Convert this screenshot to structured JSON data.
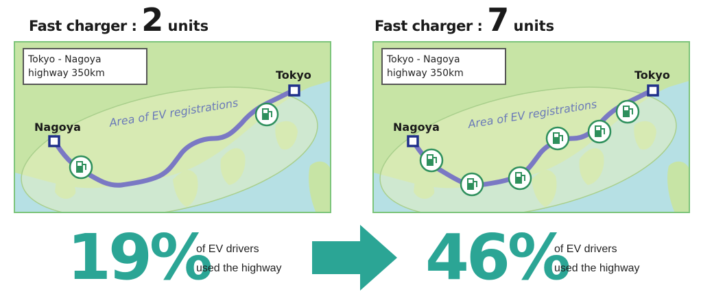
{
  "before": {
    "heading_label": "Fast charger : ",
    "heading_count": "2",
    "heading_unit": " units",
    "route_line1": "Tokyo - Nagoya",
    "route_line2": "highway 350km",
    "city_west": "Nagoya",
    "city_east": "Tokyo",
    "area_label": "Area of EV registrations",
    "stat_value": "19%",
    "stat_line1": "of EV drivers",
    "stat_line2": "used the highway"
  },
  "after": {
    "heading_label": "Fast charger : ",
    "heading_count": "7",
    "heading_unit": " units",
    "route_line1": "Tokyo - Nagoya",
    "route_line2": "highway 350km",
    "city_west": "Nagoya",
    "city_east": "Tokyo",
    "area_label": "Area of EV registrations",
    "stat_value": "46%",
    "stat_line1": "of EV drivers",
    "stat_line2": "used the highway"
  },
  "colors": {
    "land": "#c7e4a5",
    "sea": "#b6e0e4",
    "area_ellipse": "#e3efc0",
    "route": "#7a78c4",
    "charger": "#2e8f5c",
    "city_marker": "#1f2f8a",
    "stat": "#2ba595",
    "arrow": "#2ba595"
  },
  "icons": {
    "charger": "ev-charger-icon",
    "city": "city-marker-icon",
    "transition": "right-arrow-icon"
  }
}
